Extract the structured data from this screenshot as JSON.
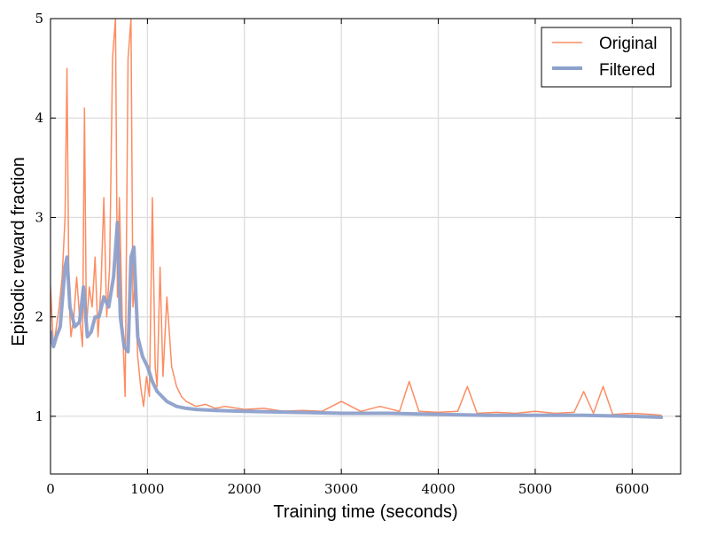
{
  "chart_data": {
    "type": "line",
    "title": "",
    "xlabel": "Training time (seconds)",
    "ylabel": "Episodic reward fraction",
    "xlim": [
      0,
      6500
    ],
    "ylim": [
      0.42,
      5
    ],
    "xticks": [
      0,
      1000,
      2000,
      3000,
      4000,
      5000,
      6000
    ],
    "xtick_labels": [
      "0",
      "1000",
      "2000",
      "3000",
      "4000",
      "5000",
      "6000"
    ],
    "yticks": [
      1,
      2,
      3,
      4,
      5
    ],
    "ytick_labels": [
      "1",
      "2",
      "3",
      "4",
      "5"
    ],
    "grid": true,
    "legend_position": "top-right",
    "series": [
      {
        "name": "Original",
        "color": "#fc8d62",
        "style": "thin-noisy",
        "x": [
          0,
          30,
          60,
          90,
          120,
          150,
          170,
          190,
          210,
          240,
          270,
          300,
          330,
          350,
          370,
          400,
          430,
          460,
          490,
          520,
          550,
          580,
          610,
          640,
          670,
          690,
          710,
          740,
          770,
          800,
          830,
          850,
          870,
          900,
          930,
          960,
          990,
          1020,
          1050,
          1080,
          1100,
          1130,
          1160,
          1200,
          1250,
          1300,
          1350,
          1400,
          1500,
          1600,
          1700,
          1800,
          2000,
          2200,
          2400,
          2600,
          2800,
          3000,
          3200,
          3400,
          3600,
          3700,
          3800,
          4000,
          4200,
          4300,
          4400,
          4600,
          4800,
          5000,
          5200,
          5400,
          5500,
          5600,
          5700,
          5800,
          6000,
          6200,
          6300
        ],
        "values": [
          2.3,
          1.7,
          1.9,
          2.1,
          2.4,
          3.0,
          4.5,
          2.2,
          1.8,
          2.0,
          2.4,
          2.0,
          1.7,
          4.1,
          1.9,
          2.3,
          2.1,
          2.6,
          1.8,
          2.3,
          3.2,
          2.0,
          2.5,
          4.6,
          5.0,
          2.2,
          3.2,
          2.0,
          1.2,
          4.6,
          5.0,
          2.1,
          2.3,
          1.6,
          1.3,
          1.1,
          1.4,
          1.2,
          3.2,
          1.5,
          1.3,
          2.5,
          1.4,
          2.2,
          1.5,
          1.3,
          1.2,
          1.15,
          1.1,
          1.12,
          1.08,
          1.1,
          1.07,
          1.08,
          1.05,
          1.06,
          1.05,
          1.15,
          1.05,
          1.1,
          1.05,
          1.35,
          1.05,
          1.04,
          1.05,
          1.3,
          1.03,
          1.04,
          1.03,
          1.05,
          1.03,
          1.04,
          1.25,
          1.03,
          1.3,
          1.02,
          1.03,
          1.02,
          1.01
        ]
      },
      {
        "name": "Filtered",
        "color": "#8da0cb",
        "style": "thick-smooth",
        "x": [
          0,
          30,
          60,
          100,
          150,
          170,
          200,
          250,
          300,
          340,
          380,
          420,
          460,
          500,
          550,
          600,
          650,
          690,
          720,
          760,
          800,
          830,
          860,
          900,
          950,
          1000,
          1050,
          1100,
          1150,
          1200,
          1300,
          1400,
          1500,
          1700,
          2000,
          2500,
          3000,
          3500,
          4000,
          4500,
          5000,
          5500,
          6000,
          6300
        ],
        "values": [
          1.85,
          1.7,
          1.8,
          1.9,
          2.5,
          2.6,
          2.1,
          1.9,
          1.95,
          2.3,
          1.8,
          1.85,
          2.0,
          2.0,
          2.2,
          2.1,
          2.4,
          2.95,
          2.0,
          1.7,
          1.65,
          2.6,
          2.7,
          1.8,
          1.6,
          1.5,
          1.35,
          1.25,
          1.2,
          1.15,
          1.1,
          1.08,
          1.07,
          1.06,
          1.05,
          1.04,
          1.03,
          1.03,
          1.02,
          1.01,
          1.01,
          1.01,
          1.0,
          0.99
        ]
      }
    ]
  }
}
